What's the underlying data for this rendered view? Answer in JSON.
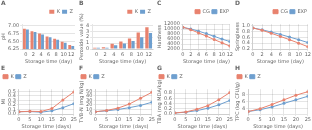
{
  "chart_data": [
    {
      "type": "bar",
      "title": "A",
      "xlabel": "Storage time (day)",
      "ylabel": "pH",
      "categories": [
        "0",
        "2",
        "4",
        "6",
        "8",
        "10",
        "12"
      ],
      "series": [
        {
          "name": "K",
          "color": "#e8826e",
          "values": [
            6.9,
            6.82,
            6.75,
            6.65,
            6.58,
            6.48,
            6.38
          ]
        },
        {
          "name": "Z",
          "color": "#6e9fcf",
          "values": [
            6.88,
            6.8,
            6.72,
            6.63,
            6.55,
            6.45,
            6.35
          ]
        }
      ],
      "ylim": [
        6.25,
        7.05
      ],
      "yticks": [
        6.25,
        {
          "value": 6.5,
          "label": "6.50"
        },
        6.75,
        {
          "value": 7,
          "label": "7.00"
        }
      ],
      "grid": "y",
      "legend": "upper right"
    },
    {
      "type": "bar",
      "title": "B",
      "xlabel": "Storage time (day)",
      "ylabel": "Peroxide value (%)",
      "categories": [
        "0",
        "2",
        "4",
        "6",
        "8",
        "10",
        "12"
      ],
      "series": [
        {
          "name": "K",
          "color": "#e8826e",
          "values": [
            0.2,
            0.28,
            0.88,
            1.25,
            1.78,
            2.8,
            3.7
          ]
        },
        {
          "name": "Z",
          "color": "#6e9fcf",
          "values": [
            0.2,
            0.22,
            0.65,
            0.95,
            1.35,
            2.0,
            2.7
          ]
        }
      ],
      "ylim": [
        0,
        4.2
      ],
      "yticks": [
        0,
        1,
        2,
        3,
        4
      ],
      "grid": "y",
      "legend": "upper right"
    },
    {
      "type": "line",
      "title": "C",
      "xlabel": "Storage time (day)",
      "ylabel": "Hardness",
      "x": [
        0,
        2,
        4,
        6,
        8,
        10,
        12
      ],
      "series": [
        {
          "name": "CG",
          "color": "#e8826e",
          "marker": "circle",
          "values": [
            10800,
            9800,
            8500,
            7200,
            5800,
            4500,
            3200
          ]
        },
        {
          "name": "EXP",
          "color": "#6e9fcf",
          "marker": "circle",
          "values": [
            10700,
            10100,
            9200,
            8200,
            7100,
            6000,
            5000
          ]
        }
      ],
      "xlim": [
        0,
        12
      ],
      "xticks": [
        0,
        2,
        4,
        6,
        8,
        10,
        12
      ],
      "ylim": [
        2000,
        12000
      ],
      "yticks": [
        2000,
        4000,
        6000,
        8000,
        10000,
        12000
      ],
      "grid": true,
      "legend": "upper right"
    },
    {
      "type": "line",
      "title": "D",
      "xlabel": "Storage time (day)",
      "ylabel": "Springiness",
      "x": [
        0,
        2,
        4,
        6,
        8,
        10,
        12
      ],
      "series": [
        {
          "name": "CG",
          "color": "#e8826e",
          "marker": "circle",
          "values": [
            0.92,
            0.84,
            0.74,
            0.63,
            0.52,
            0.4,
            0.28
          ]
        },
        {
          "name": "EXP",
          "color": "#6e9fcf",
          "marker": "circle",
          "values": [
            0.92,
            0.86,
            0.78,
            0.7,
            0.61,
            0.52,
            0.42
          ]
        }
      ],
      "xlim": [
        0,
        12
      ],
      "xticks": [
        0,
        2,
        4,
        6,
        8,
        10,
        12
      ],
      "ylim": [
        0.2,
        1.05
      ],
      "yticks": [
        0.2,
        0.4,
        0.6,
        0.8,
        {
          "value": 1,
          "label": "1.0"
        }
      ],
      "grid": true,
      "legend": "upper right"
    },
    {
      "type": "line",
      "title": "E",
      "xlabel": "Storage time (days)",
      "ylabel": "MI",
      "x": [
        0,
        5,
        10,
        15,
        20,
        25
      ],
      "series": [
        {
          "name": "K",
          "color": "#e8826e",
          "marker": "circle",
          "values": [
            0.05,
            0.06,
            0.055,
            0.12,
            0.31,
            0.49
          ]
        },
        {
          "name": "Z",
          "color": "#6e9fcf",
          "marker": "circle",
          "values": [
            0.05,
            0.055,
            0.04,
            0.07,
            0.14,
            0.23
          ]
        }
      ],
      "xlim": [
        0,
        25
      ],
      "xticks": [
        0,
        5,
        10,
        15,
        20,
        25
      ],
      "ylim": [
        0.0,
        0.55
      ],
      "yticks": [
        {
          "value": 0,
          "label": "0.0"
        },
        0.1,
        0.2,
        0.3,
        0.4,
        0.5
      ],
      "grid": true,
      "legend": "upper left"
    },
    {
      "type": "line",
      "title": "F",
      "xlabel": "Storage time (days)",
      "ylabel": "TVB-N (mg N/kg)",
      "x": [
        0,
        5,
        10,
        15,
        20,
        25
      ],
      "series": [
        {
          "name": "K",
          "color": "#e8826e",
          "marker": "circle",
          "values": [
            5,
            8,
            13,
            22,
            35,
            48
          ]
        },
        {
          "name": "Z",
          "color": "#6e9fcf",
          "marker": "circle",
          "values": [
            5,
            7,
            10,
            14,
            19,
            26
          ]
        }
      ],
      "xlim": [
        0,
        25
      ],
      "xticks": [
        0,
        5,
        10,
        15,
        20,
        25
      ],
      "ylim": [
        0,
        55
      ],
      "yticks": [
        0,
        10,
        20,
        30,
        40,
        50
      ],
      "grid": true,
      "legend": "upper left"
    },
    {
      "type": "line",
      "title": "G",
      "xlabel": "Storage time (days)",
      "ylabel": "TBA (mg MDA/kg)",
      "x": [
        0,
        5,
        10,
        15,
        20,
        25
      ],
      "series": [
        {
          "name": "K",
          "color": "#e8826e",
          "marker": "circle",
          "values": [
            0.04,
            0.08,
            0.18,
            0.32,
            0.55,
            0.82
          ]
        },
        {
          "name": "Z",
          "color": "#6e9fcf",
          "marker": "circle",
          "values": [
            0.04,
            0.07,
            0.13,
            0.22,
            0.35,
            0.52
          ]
        }
      ],
      "xlim": [
        0,
        25
      ],
      "xticks": [
        0,
        5,
        10,
        15,
        20,
        25
      ],
      "ylim": [
        0,
        0.95
      ],
      "yticks": [
        {
          "value": 0,
          "label": "0.0"
        },
        0.2,
        0.4,
        0.6,
        0.8
      ],
      "grid": true,
      "legend": "upper left"
    },
    {
      "type": "line",
      "title": "H",
      "xlabel": "Storage time (days)",
      "ylabel": "TPC (log CFU/g)",
      "x": [
        0,
        5,
        10,
        15,
        20,
        25
      ],
      "series": [
        {
          "name": "K",
          "color": "#e8826e",
          "marker": "circle",
          "values": [
            3.2,
            4.0,
            5.2,
            6.5,
            7.8,
            8.8
          ]
        },
        {
          "name": "Z",
          "color": "#6e9fcf",
          "marker": "circle",
          "values": [
            3.2,
            3.7,
            4.5,
            5.5,
            6.5,
            7.5
          ]
        }
      ],
      "xlim": [
        0,
        25
      ],
      "xticks": [
        0,
        5,
        10,
        15,
        20,
        25
      ],
      "ylim": [
        2.5,
        9.5
      ],
      "yticks": [
        4,
        6,
        8
      ],
      "grid": true,
      "legend": "upper left"
    }
  ]
}
